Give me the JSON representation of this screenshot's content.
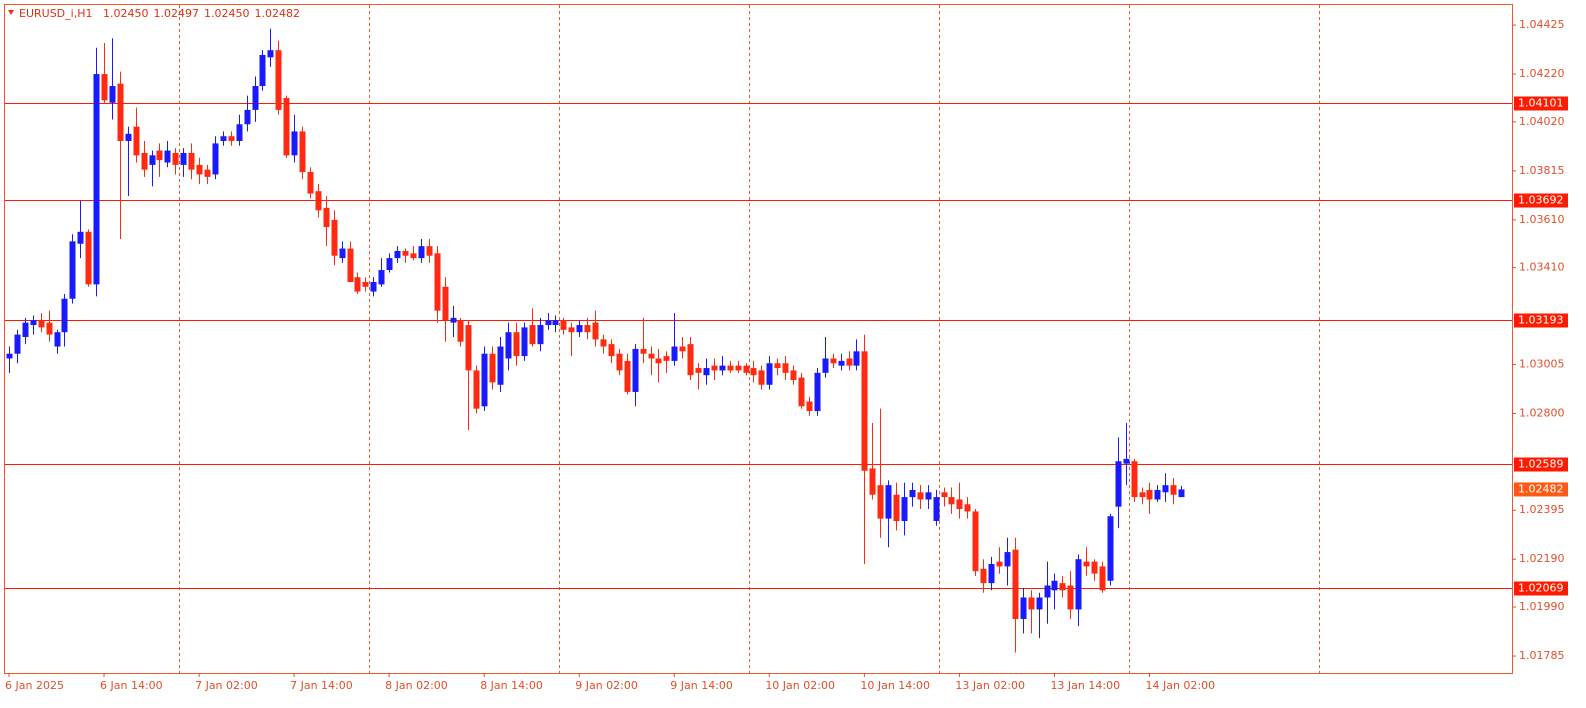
{
  "chart_data": {
    "type": "candlestick",
    "title": "EURUSD_i,H1",
    "title_values": [
      "1.02450",
      "1.02497",
      "1.02450",
      "1.02482"
    ],
    "categories": [
      "6 Jan 2025",
      null,
      null,
      null,
      null,
      null,
      null,
      null,
      null,
      null,
      null,
      null,
      "6 Jan 14:00",
      null,
      null,
      null,
      null,
      null,
      null,
      null,
      null,
      null,
      null,
      null,
      "7 Jan 02:00",
      null,
      null,
      null,
      null,
      null,
      null,
      null,
      null,
      null,
      null,
      null,
      "7 Jan 14:00",
      null,
      null,
      null,
      null,
      null,
      null,
      null,
      null,
      null,
      null,
      null,
      "8 Jan 02:00",
      null,
      null,
      null,
      null,
      null,
      null,
      null,
      null,
      null,
      null,
      null,
      "8 Jan 14:00",
      null,
      null,
      null,
      null,
      null,
      null,
      null,
      null,
      null,
      null,
      null,
      "9 Jan 02:00",
      null,
      null,
      null,
      null,
      null,
      null,
      null,
      null,
      null,
      null,
      null,
      "9 Jan 14:00",
      null,
      null,
      null,
      null,
      null,
      null,
      null,
      null,
      null,
      null,
      null,
      "10 Jan 02:00",
      null,
      null,
      null,
      null,
      null,
      null,
      null,
      null,
      null,
      null,
      null,
      "10 Jan 14:00",
      null,
      null,
      null,
      null,
      null,
      null,
      null,
      null,
      null,
      null,
      null,
      "13 Jan 02:00",
      null,
      null,
      null,
      null,
      null,
      null,
      null,
      null,
      null,
      null,
      null,
      "13 Jan 14:00",
      null,
      null,
      null,
      null,
      null,
      null,
      null,
      null,
      null,
      null,
      null,
      "14 Jan 02:00",
      null,
      null,
      null,
      null
    ],
    "series": {
      "open": [
        1.0303,
        1.0305,
        1.0312,
        1.0317,
        1.0319,
        1.0318,
        1.0308,
        1.0314,
        1.0328,
        1.0351,
        1.0356,
        1.0334,
        1.0422,
        1.041,
        1.0418,
        1.0394,
        1.04,
        1.0389,
        1.0384,
        1.039,
        1.0385,
        1.0389,
        1.0384,
        1.0389,
        1.0384,
        1.0382,
        1.038,
        1.0394,
        1.0396,
        1.0394,
        1.0401,
        1.0407,
        1.0417,
        1.0429,
        1.0432,
        1.0412,
        1.0388,
        1.0398,
        1.0381,
        1.0373,
        1.0366,
        1.0361,
        1.0345,
        1.0349,
        1.0337,
        1.0335,
        1.0331,
        1.0334,
        1.034,
        1.0345,
        1.0348,
        1.0347,
        1.0345,
        1.035,
        1.0347,
        1.0333,
        1.0318,
        1.0319,
        1.0317,
        1.0298,
        1.0283,
        1.0305,
        1.0292,
        1.0303,
        1.0314,
        1.0304,
        1.0317,
        1.0309,
        1.0317,
        1.0317,
        1.0319,
        1.0316,
        1.0314,
        1.0317,
        1.0318,
        1.0311,
        1.0309,
        1.0305,
        1.0302,
        1.0289,
        1.0307,
        1.0305,
        1.0303,
        1.0304,
        1.0302,
        1.0308,
        1.0309,
        1.0299,
        1.0296,
        1.03,
        1.0298,
        1.03,
        1.03,
        1.03,
        1.0299,
        1.0298,
        1.0292,
        1.0301,
        1.0301,
        1.0298,
        1.0295,
        1.0285,
        1.0281,
        1.0297,
        1.0303,
        1.03,
        1.0303,
        1.03,
        1.0306,
        1.0257,
        1.025,
        1.0236,
        1.0246,
        1.0235,
        1.0245,
        1.0247,
        1.0244,
        1.0235,
        1.0247,
        1.0245,
        1.0244,
        1.0242,
        1.0239,
        1.0215,
        1.0209,
        1.0218,
        1.0216,
        1.0223,
        1.0194,
        1.0203,
        1.0198,
        1.0203,
        1.0206,
        1.0209,
        1.0208,
        1.0198,
        1.0218,
        1.0218,
        1.0216,
        1.021,
        1.0241,
        1.0259,
        1.026,
        1.0247,
        1.0248,
        1.0244,
        1.0247,
        1.025,
        1.0245
      ],
      "high": [
        1.0308,
        1.0315,
        1.032,
        1.0321,
        1.0322,
        1.0323,
        1.0315,
        1.033,
        1.0355,
        1.0369,
        1.0357,
        1.0433,
        1.0435,
        1.0437,
        1.0423,
        1.04,
        1.0408,
        1.0394,
        1.039,
        1.0393,
        1.0394,
        1.0391,
        1.0391,
        1.0393,
        1.0387,
        1.0384,
        1.0396,
        1.0398,
        1.0398,
        1.0405,
        1.0413,
        1.0421,
        1.0432,
        1.0441,
        1.0436,
        1.0413,
        1.0405,
        1.04,
        1.0383,
        1.0376,
        1.0371,
        1.0365,
        1.0352,
        1.0352,
        1.0339,
        1.0337,
        1.0337,
        1.0345,
        1.0347,
        1.035,
        1.0349,
        1.035,
        1.0353,
        1.0353,
        1.035,
        1.0337,
        1.0325,
        1.032,
        1.0319,
        1.03,
        1.0308,
        1.0308,
        1.0312,
        1.0318,
        1.0318,
        1.0318,
        1.0324,
        1.032,
        1.0322,
        1.0321,
        1.032,
        1.0318,
        1.0319,
        1.032,
        1.0323,
        1.0313,
        1.0311,
        1.0307,
        1.0305,
        1.0309,
        1.032,
        1.0308,
        1.0307,
        1.0306,
        1.0322,
        1.0312,
        1.0312,
        1.0301,
        1.0303,
        1.0303,
        1.0304,
        1.0302,
        1.0302,
        1.0301,
        1.0302,
        1.03,
        1.0304,
        1.0303,
        1.0304,
        1.03,
        1.0297,
        1.0287,
        1.0299,
        1.0312,
        1.0305,
        1.0305,
        1.0306,
        1.0311,
        1.0313,
        1.0276,
        1.0282,
        1.0252,
        1.0251,
        1.0251,
        1.0251,
        1.025,
        1.025,
        1.0248,
        1.0249,
        1.0249,
        1.0251,
        1.0245,
        1.024,
        1.0219,
        1.022,
        1.0224,
        1.0228,
        1.0228,
        1.0207,
        1.0206,
        1.0205,
        1.0218,
        1.0213,
        1.0212,
        1.0214,
        1.0221,
        1.0224,
        1.0219,
        1.0218,
        1.0238,
        1.027,
        1.0276,
        1.0261,
        1.0249,
        1.0251,
        1.025,
        1.0255,
        1.0253,
        1.02497
      ],
      "low": [
        1.0297,
        1.0301,
        1.0309,
        1.0313,
        1.0314,
        1.031,
        1.0305,
        1.0308,
        1.0326,
        1.0345,
        1.0333,
        1.0329,
        1.041,
        1.0403,
        1.0353,
        1.0371,
        1.0385,
        1.0379,
        1.0375,
        1.0379,
        1.0383,
        1.038,
        1.0379,
        1.0378,
        1.0376,
        1.0376,
        1.0378,
        1.0392,
        1.0392,
        1.0392,
        1.0398,
        1.0402,
        1.0415,
        1.0425,
        1.0405,
        1.0387,
        1.0385,
        1.0378,
        1.037,
        1.0362,
        1.035,
        1.0342,
        1.0343,
        1.0335,
        1.033,
        1.0331,
        1.0329,
        1.0333,
        1.0339,
        1.0343,
        1.0343,
        1.0344,
        1.0343,
        1.0343,
        1.0318,
        1.031,
        1.0312,
        1.0308,
        1.0273,
        1.028,
        1.0281,
        1.029,
        1.0289,
        1.0298,
        1.03,
        1.0302,
        1.0308,
        1.0306,
        1.0315,
        1.0314,
        1.0313,
        1.0304,
        1.0312,
        1.0311,
        1.0308,
        1.0305,
        1.0301,
        1.0296,
        1.0288,
        1.0283,
        1.0301,
        1.0296,
        1.0293,
        1.0297,
        1.03,
        1.0303,
        1.0294,
        1.029,
        1.0292,
        1.0294,
        1.0296,
        1.0297,
        1.0297,
        1.0296,
        1.0293,
        1.029,
        1.029,
        1.0296,
        1.0294,
        1.0292,
        1.0282,
        1.0279,
        1.0279,
        1.0295,
        1.0299,
        1.0298,
        1.0298,
        1.0298,
        1.0217,
        1.0244,
        1.0228,
        1.0224,
        1.0231,
        1.0229,
        1.0241,
        1.024,
        1.024,
        1.0233,
        1.0241,
        1.0238,
        1.0236,
        1.0236,
        1.0212,
        1.0205,
        1.0206,
        1.0213,
        1.0208,
        1.018,
        1.0188,
        1.0188,
        1.0186,
        1.0192,
        1.0198,
        1.0203,
        1.0194,
        1.0191,
        1.0212,
        1.021,
        1.0205,
        1.0208,
        1.0232,
        1.025,
        1.0243,
        1.0242,
        1.0238,
        1.0243,
        1.0243,
        1.0242,
        1.0245
      ],
      "close": [
        1.0305,
        1.0313,
        1.0318,
        1.0319,
        1.0316,
        1.0313,
        1.0314,
        1.0328,
        1.0352,
        1.0356,
        1.0334,
        1.0422,
        1.0411,
        1.0417,
        1.0394,
        1.0397,
        1.0388,
        1.0382,
        1.0388,
        1.0386,
        1.039,
        1.0384,
        1.0389,
        1.0382,
        1.038,
        1.0379,
        1.0393,
        1.0396,
        1.0394,
        1.0401,
        1.0407,
        1.0417,
        1.043,
        1.0432,
        1.0407,
        1.0388,
        1.0398,
        1.0381,
        1.0372,
        1.0365,
        1.0358,
        1.0346,
        1.0349,
        1.0335,
        1.0331,
        1.0333,
        1.0335,
        1.034,
        1.0345,
        1.0348,
        1.0346,
        1.0345,
        1.035,
        1.0346,
        1.0323,
        1.0319,
        1.032,
        1.031,
        1.0298,
        1.0282,
        1.0305,
        1.0293,
        1.0308,
        1.0314,
        1.0304,
        1.0316,
        1.0309,
        1.0317,
        1.0319,
        1.0319,
        1.0315,
        1.0314,
        1.0317,
        1.0314,
        1.0311,
        1.0308,
        1.0304,
        1.0298,
        1.0289,
        1.0307,
        1.0305,
        1.0303,
        1.0301,
        1.0302,
        1.0308,
        1.0306,
        1.0296,
        1.0297,
        1.0299,
        1.0298,
        1.03,
        1.0298,
        1.0298,
        1.0297,
        1.0296,
        1.0292,
        1.0301,
        1.0299,
        1.0297,
        1.0294,
        1.0283,
        1.0281,
        1.0297,
        1.0303,
        1.0301,
        1.0302,
        1.03,
        1.0306,
        1.0256,
        1.0246,
        1.0236,
        1.025,
        1.0235,
        1.0245,
        1.0248,
        1.0244,
        1.0247,
        1.0245,
        1.0245,
        1.0242,
        1.024,
        1.0239,
        1.0214,
        1.0209,
        1.0217,
        1.0216,
        1.0222,
        1.0194,
        1.0203,
        1.0198,
        1.0203,
        1.0208,
        1.021,
        1.0206,
        1.0198,
        1.0219,
        1.0216,
        1.0213,
        1.0206,
        1.0237,
        1.026,
        1.0261,
        1.0245,
        1.0245,
        1.0244,
        1.0248,
        1.025,
        1.0246,
        1.02482
      ]
    },
    "up_color": "#1a1aff",
    "down_color": "#ff2a10",
    "ylim": [
      1.01714,
      1.04509
    ],
    "yticks": [
      1.04425,
      {
        "value": 1.0422,
        "label": "1.04220"
      },
      {
        "value": 1.0402,
        "label": "1.04020"
      },
      1.03815,
      {
        "value": 1.0361,
        "label": "1.03610"
      },
      {
        "value": 1.0341,
        "label": "1.03410"
      },
      1.03005,
      {
        "value": 1.028,
        "label": "1.02800"
      },
      1.02395,
      {
        "value": 1.0219,
        "label": "1.02190"
      },
      {
        "value": 1.0199,
        "label": "1.01990"
      },
      1.01785
    ],
    "levels": [
      1.04101,
      1.03692,
      1.03193,
      1.02589,
      1.02069
    ],
    "level_color": "#ff1a00",
    "current_price": 1.02482,
    "current_price_color": "#ff5a14"
  }
}
